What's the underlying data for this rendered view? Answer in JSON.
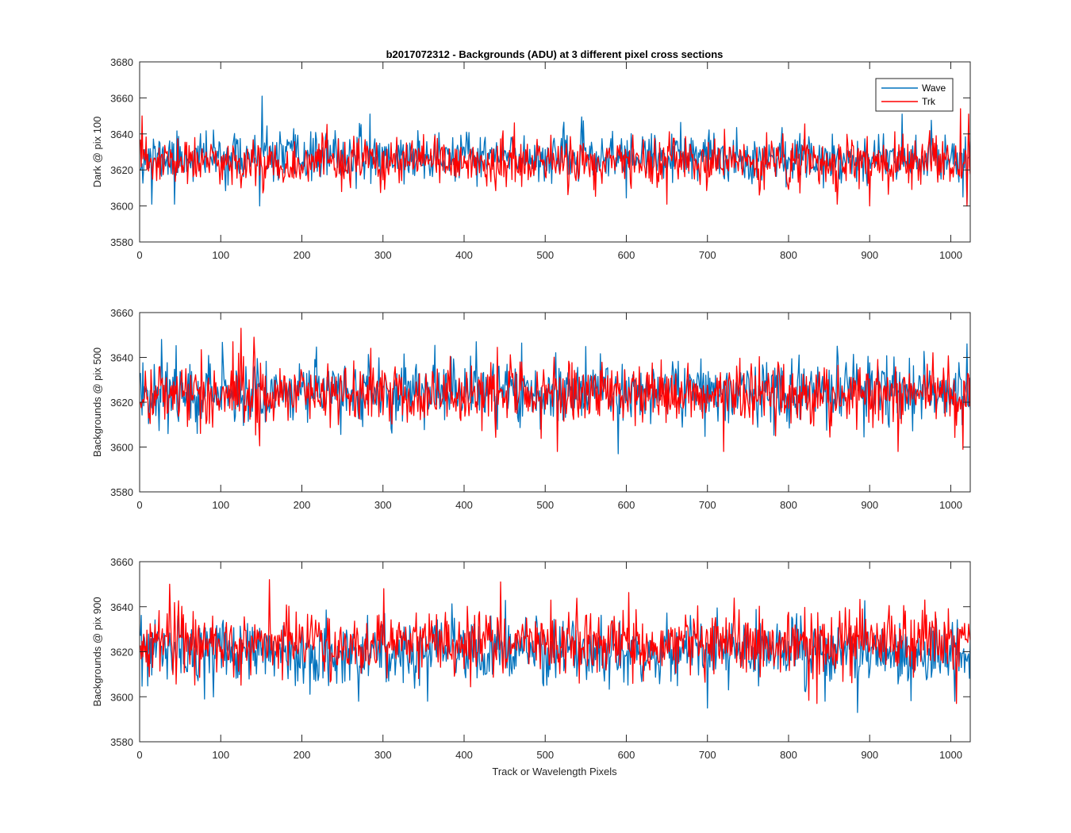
{
  "figure": {
    "title": "b2017072312 - Backgrounds (ADU) at 3 different pixel cross sections",
    "xlabel": "Track or Wavelength Pixels"
  },
  "colors": {
    "wave": "#0072BD",
    "trk": "#FF0000",
    "axis": "#262626"
  },
  "chart_data": [
    {
      "type": "line",
      "ylabel": "Dark @ pix 100",
      "xlim": [
        0,
        1024
      ],
      "ylim": [
        3580,
        3680
      ],
      "xticks": [
        0,
        100,
        200,
        300,
        400,
        500,
        600,
        700,
        800,
        900,
        1000
      ],
      "yticks": [
        3580,
        3600,
        3620,
        3640,
        3660,
        3680
      ],
      "legend": {
        "location": "top-right",
        "entries": [
          "Wave",
          "Trk"
        ]
      },
      "series": [
        {
          "name": "Wave",
          "mean": 3627,
          "sd": 6.5,
          "seed": 11,
          "x_range": [
            1,
            1024
          ],
          "samples": 1024,
          "spikes": [
            [
              151,
              3661
            ],
            [
              284,
              3651
            ],
            [
              940,
              3651
            ],
            [
              15,
              3601
            ],
            [
              148,
              3600
            ],
            [
              43,
              3601
            ],
            [
              1020,
              3601
            ],
            [
              1015,
              3605
            ]
          ]
        },
        {
          "name": "Trk",
          "mean": 3624,
          "sd": 6.5,
          "seed": 23,
          "x_range": [
            1,
            1024
          ],
          "samples": 1024,
          "spikes": [
            [
              1012,
              3654
            ],
            [
              1022,
              3651
            ],
            [
              3,
              3650
            ],
            [
              650,
              3601
            ],
            [
              860,
              3601
            ],
            [
              1020,
              3600
            ],
            [
              900,
              3600
            ]
          ]
        }
      ]
    },
    {
      "type": "line",
      "ylabel": "Backgrounds @ pix 500",
      "xlim": [
        0,
        1024
      ],
      "ylim": [
        3580,
        3660
      ],
      "xticks": [
        0,
        100,
        200,
        300,
        400,
        500,
        600,
        700,
        800,
        900,
        1000
      ],
      "yticks": [
        3580,
        3600,
        3620,
        3640,
        3660
      ],
      "series": [
        {
          "name": "Wave",
          "mean": 3625,
          "sd": 7.0,
          "seed": 37,
          "x_range": [
            1,
            1024
          ],
          "samples": 1024,
          "spikes": [
            [
              27,
              3648
            ],
            [
              590,
              3597
            ],
            [
              1020,
              3646
            ],
            [
              35,
              3606
            ],
            [
              415,
              3647
            ],
            [
              860,
              3645
            ]
          ]
        },
        {
          "name": "Trk",
          "mean": 3624,
          "sd": 7.0,
          "seed": 41,
          "x_range": [
            1,
            1024
          ],
          "samples": 1024,
          "spikes": [
            [
              125,
              3653
            ],
            [
              141,
              3649
            ],
            [
              515,
              3598
            ],
            [
              720,
              3598
            ],
            [
              1015,
              3599
            ],
            [
              935,
              3598
            ]
          ]
        }
      ]
    },
    {
      "type": "line",
      "ylabel": "Backgrounds @ pix 900",
      "xlim": [
        0,
        1024
      ],
      "ylim": [
        3580,
        3660
      ],
      "xticks": [
        0,
        100,
        200,
        300,
        400,
        500,
        600,
        700,
        800,
        900,
        1000
      ],
      "yticks": [
        3580,
        3600,
        3620,
        3640,
        3660
      ],
      "series": [
        {
          "name": "Wave",
          "mean": 3620,
          "sd": 7.0,
          "seed": 53,
          "x_range": [
            1,
            1024
          ],
          "samples": 1024,
          "spikes": [
            [
              885,
              3593
            ],
            [
              700,
              3595
            ],
            [
              270,
              3598
            ],
            [
              1005,
              3598
            ],
            [
              80,
              3599
            ]
          ]
        },
        {
          "name": "Trk",
          "mean": 3624,
          "sd": 7.0,
          "seed": 67,
          "x_range": [
            1,
            1024
          ],
          "samples": 1024,
          "spikes": [
            [
              160,
              3652
            ],
            [
              445,
              3651
            ],
            [
              37,
              3650
            ],
            [
              1007,
              3597
            ],
            [
              835,
              3597
            ]
          ]
        }
      ]
    }
  ]
}
